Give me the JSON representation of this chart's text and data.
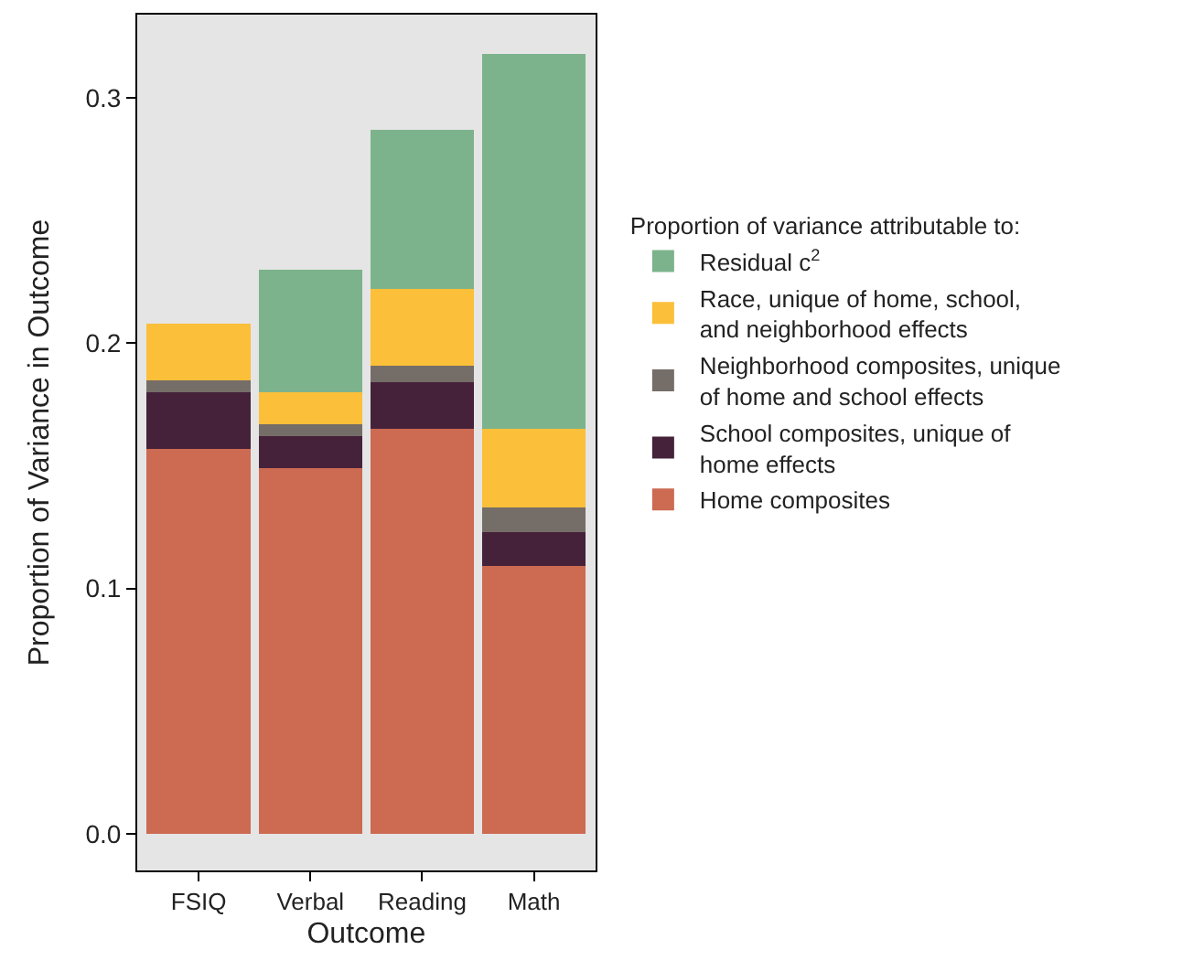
{
  "chart_data": {
    "type": "bar",
    "stacked": true,
    "xlabel": "Outcome",
    "ylabel": "Proportion of Variance in Outcome",
    "legend_title": "Proportion of variance attributable to:",
    "legend": "right",
    "grid": false,
    "categories": [
      "FSIQ",
      "Verbal",
      "Reading",
      "Math"
    ],
    "ylim": [
      -0.015,
      0.334
    ],
    "yticks": [
      {
        "value": 0,
        "label": "0.0"
      },
      0.1,
      0.2,
      0.3
    ],
    "series": [
      {
        "name": "Home composites",
        "color": "#cc6a52",
        "values": [
          0.157,
          0.149,
          0.165,
          0.109
        ]
      },
      {
        "name": "School composites, unique of home effects",
        "color": "#45223a",
        "values": [
          0.023,
          0.013,
          0.019,
          0.014
        ]
      },
      {
        "name": "Neighborhood composites, unique of home and school effects",
        "color": "#756d67",
        "values": [
          0.005,
          0.005,
          0.007,
          0.01
        ]
      },
      {
        "name": "Race, unique of home, school, and neighborhood effects",
        "color": "#fbbf3a",
        "values": [
          0.023,
          0.013,
          0.031,
          0.032
        ]
      },
      {
        "name": "Residual c$^{2}$",
        "color": "#7cb38c",
        "values": [
          null,
          0.05,
          0.065,
          0.153
        ]
      }
    ]
  }
}
